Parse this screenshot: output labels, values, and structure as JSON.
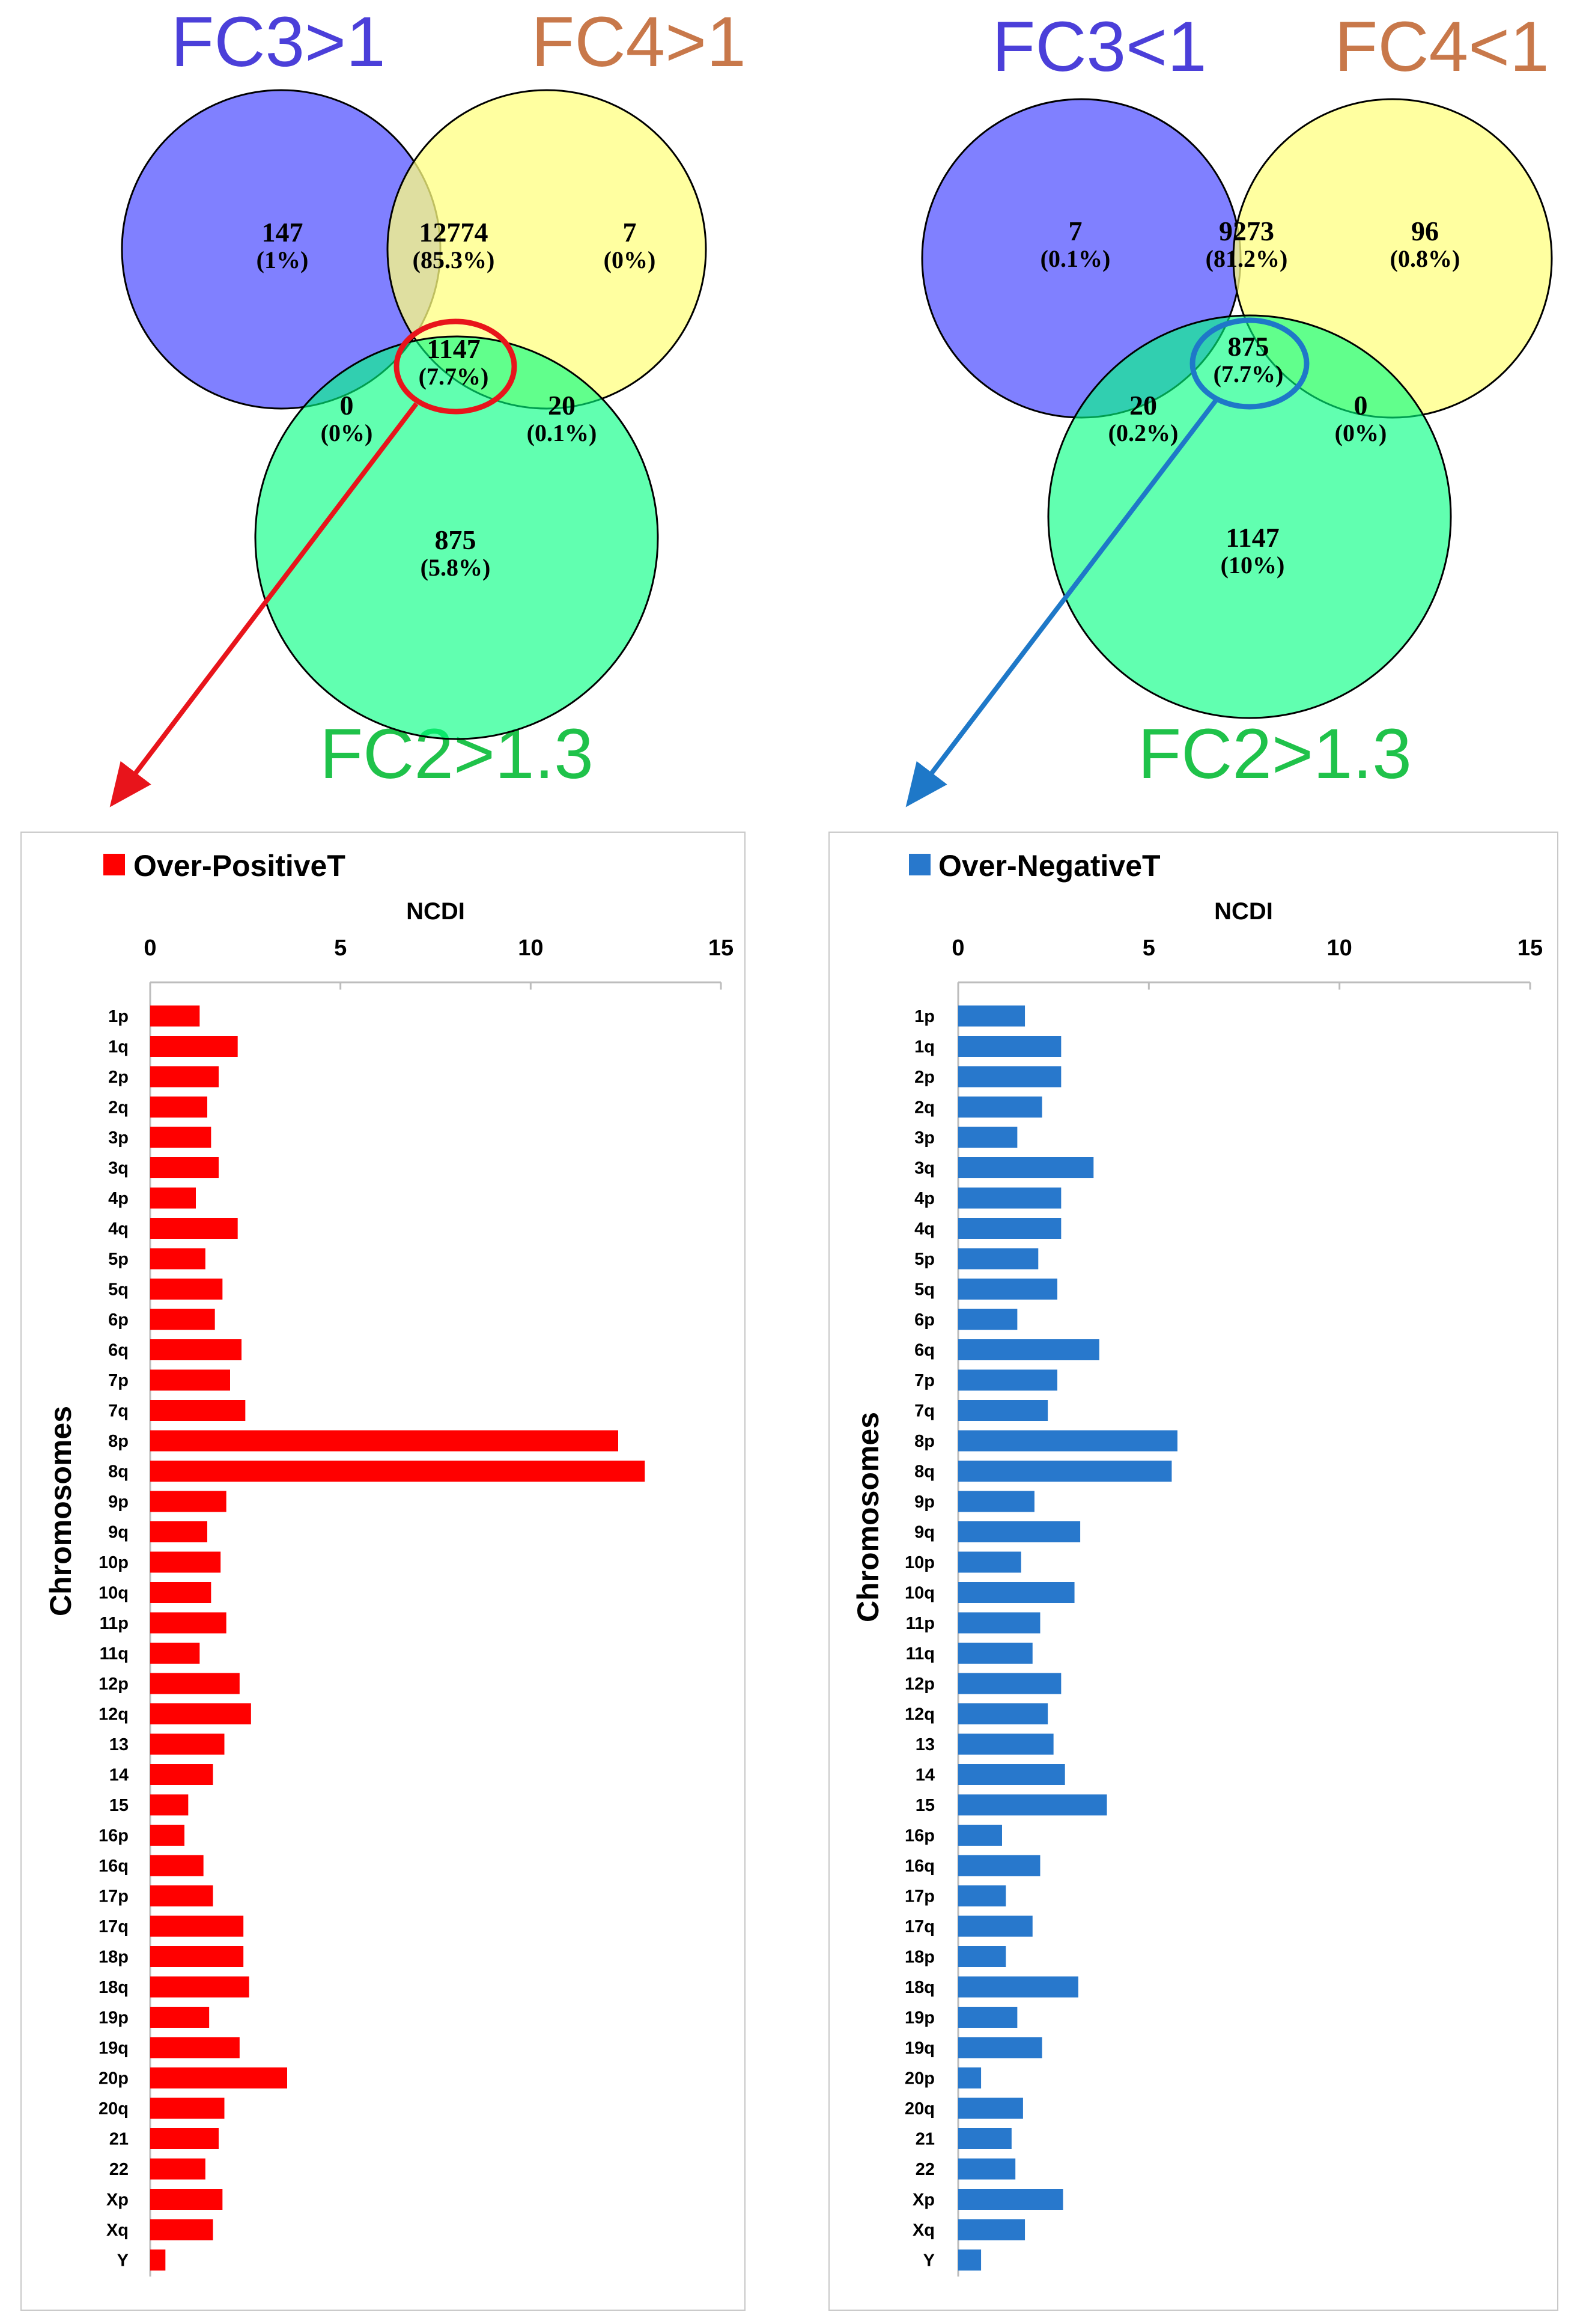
{
  "venns": [
    {
      "id": "positive",
      "labels": {
        "a": "FC3>1",
        "b": "FC4>1",
        "c": "FC2>1.3"
      },
      "label_colors": {
        "a": "#4B3FD9",
        "b": "#C8784A",
        "c": "#1FC24A"
      },
      "regions": {
        "a_only": {
          "count": "147",
          "pct": "(1%)"
        },
        "ab_only": {
          "count": "12774",
          "pct": "(85.3%)"
        },
        "b_only": {
          "count": "7",
          "pct": "(0%)"
        },
        "abc": {
          "count": "1147",
          "pct": "(7.7%)"
        },
        "ac_only": {
          "count": "0",
          "pct": "(0%)"
        },
        "bc_only": {
          "count": "20",
          "pct": "(0.1%)"
        },
        "c_only": {
          "count": "875",
          "pct": "(5.8%)"
        }
      },
      "highlight_color": "#E8141B"
    },
    {
      "id": "negative",
      "labels": {
        "a": "FC3<1",
        "b": "FC4<1",
        "c": "FC2>1.3"
      },
      "label_colors": {
        "a": "#4B3FD9",
        "b": "#C8784A",
        "c": "#1FC24A"
      },
      "regions": {
        "a_only": {
          "count": "7",
          "pct": "(0.1%)"
        },
        "ab_only": {
          "count": "9273",
          "pct": "(81.2%)"
        },
        "b_only": {
          "count": "96",
          "pct": "(0.8%)"
        },
        "abc": {
          "count": "875",
          "pct": "(7.7%)"
        },
        "ac_only": {
          "count": "20",
          "pct": "(0.2%)"
        },
        "bc_only": {
          "count": "0",
          "pct": "(0%)"
        },
        "c_only": {
          "count": "1147",
          "pct": "(10%)"
        }
      },
      "highlight_color": "#1E78C8"
    }
  ],
  "colors": {
    "circle_a": "#8080FF",
    "circle_b": "#FFFF80",
    "circle_c": "#00FF7F",
    "red_bar": "#FF0000",
    "blue_bar": "#2878CC"
  },
  "chart_data": [
    {
      "type": "bar",
      "orientation": "horizontal",
      "legend": "Over-PositiveT",
      "xlabel": "NCDI",
      "ylabel": "Chromosomes",
      "xlim": [
        0,
        15
      ],
      "xticks": [
        "0",
        "5",
        "10",
        "15"
      ],
      "categories": [
        "1p",
        "1q",
        "2p",
        "2q",
        "3p",
        "3q",
        "4p",
        "4q",
        "5p",
        "5q",
        "6p",
        "6q",
        "7p",
        "7q",
        "8p",
        "8q",
        "9p",
        "9q",
        "10p",
        "10q",
        "11p",
        "11q",
        "12p",
        "12q",
        "13",
        "14",
        "15",
        "16p",
        "16q",
        "17p",
        "17q",
        "18p",
        "18q",
        "19p",
        "19q",
        "20p",
        "20q",
        "21",
        "22",
        "Xp",
        "Xq",
        "Y"
      ],
      "values": [
        1.3,
        2.3,
        1.8,
        1.5,
        1.6,
        1.8,
        1.2,
        2.3,
        1.45,
        1.9,
        1.7,
        2.4,
        2.1,
        2.5,
        12.3,
        13.0,
        2.0,
        1.5,
        1.85,
        1.6,
        2.0,
        1.3,
        2.35,
        2.65,
        1.95,
        1.65,
        1.0,
        0.9,
        1.4,
        1.65,
        2.45,
        2.45,
        2.6,
        1.55,
        2.35,
        3.6,
        1.95,
        1.8,
        1.45,
        1.9,
        1.65,
        0.4
      ]
    },
    {
      "type": "bar",
      "orientation": "horizontal",
      "legend": "Over-NegativeT",
      "xlabel": "NCDI",
      "ylabel": "Chromosomes",
      "xlim": [
        0,
        15
      ],
      "xticks": [
        "0",
        "5",
        "10",
        "15"
      ],
      "categories": [
        "1p",
        "1q",
        "2p",
        "2q",
        "3p",
        "3q",
        "4p",
        "4q",
        "5p",
        "5q",
        "6p",
        "6q",
        "7p",
        "7q",
        "8p",
        "8q",
        "9p",
        "9q",
        "10p",
        "10q",
        "11p",
        "11q",
        "12p",
        "12q",
        "13",
        "14",
        "15",
        "16p",
        "16q",
        "17p",
        "17q",
        "18p",
        "18q",
        "19p",
        "19q",
        "20p",
        "20q",
        "21",
        "22",
        "Xp",
        "Xq",
        "Y"
      ],
      "values": [
        1.75,
        2.7,
        2.7,
        2.2,
        1.55,
        3.55,
        2.7,
        2.7,
        2.1,
        2.6,
        1.55,
        3.7,
        2.6,
        2.35,
        5.75,
        5.6,
        2.0,
        3.2,
        1.65,
        3.05,
        2.15,
        1.95,
        2.7,
        2.35,
        2.5,
        2.8,
        3.9,
        1.15,
        2.15,
        1.25,
        1.95,
        1.25,
        3.15,
        1.55,
        2.2,
        0.6,
        1.7,
        1.4,
        1.5,
        2.75,
        1.75,
        0.6
      ]
    }
  ]
}
